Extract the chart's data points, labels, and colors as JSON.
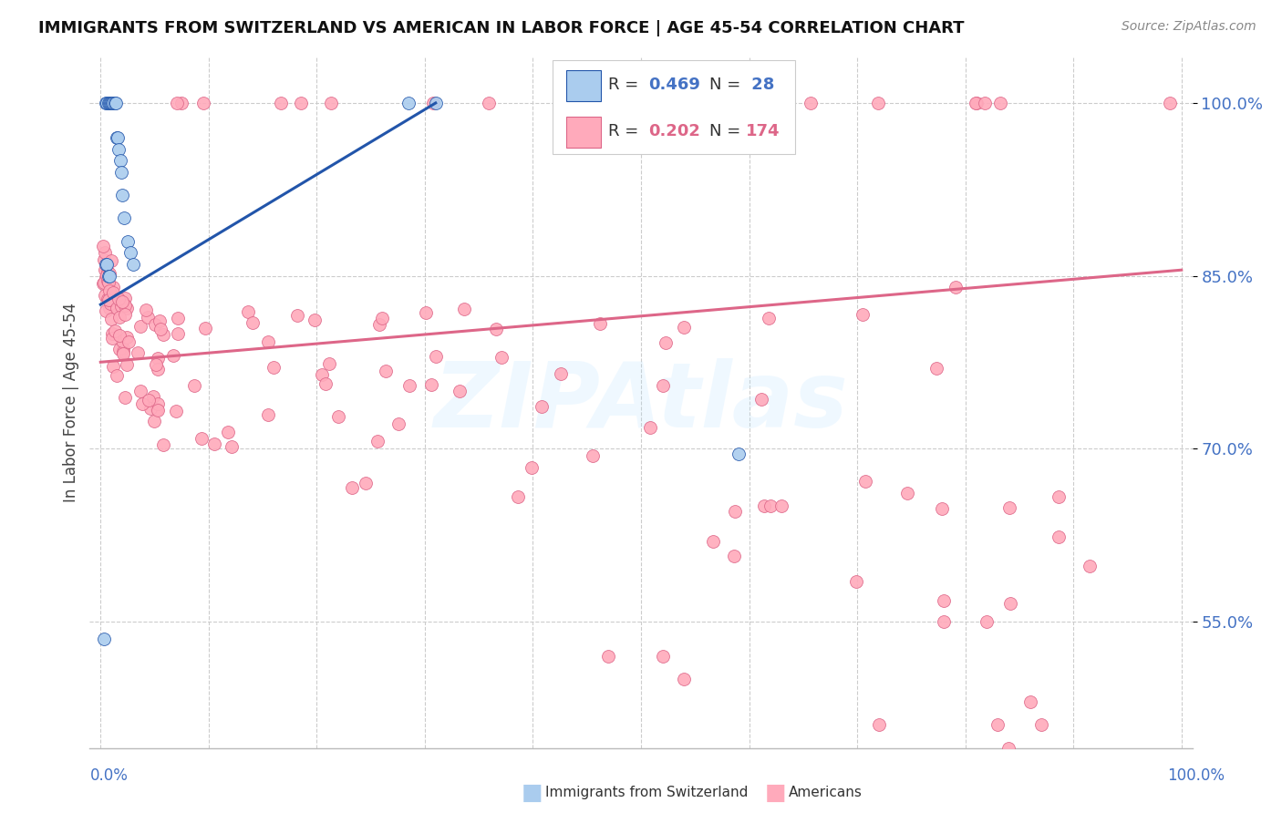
{
  "title": "IMMIGRANTS FROM SWITZERLAND VS AMERICAN IN LABOR FORCE | AGE 45-54 CORRELATION CHART",
  "source": "Source: ZipAtlas.com",
  "ylabel": "In Labor Force | Age 45-54",
  "xlim": [
    -0.01,
    1.01
  ],
  "ylim": [
    0.44,
    1.04
  ],
  "yticks": [
    0.55,
    0.7,
    0.85,
    1.0
  ],
  "ytick_labels": [
    "55.0%",
    "70.0%",
    "85.0%",
    "100.0%"
  ],
  "blue_color": "#aaccee",
  "blue_line_color": "#2255aa",
  "pink_color": "#ffaabb",
  "pink_line_color": "#dd6688",
  "watermark": "ZIPAtlas",
  "blue_R": "0.469",
  "blue_N": "28",
  "pink_R": "0.202",
  "pink_N": "174",
  "accent_color": "#4472c4",
  "blue_scatter_x": [
    0.005,
    0.006,
    0.007,
    0.008,
    0.009,
    0.01,
    0.011,
    0.012,
    0.013,
    0.014,
    0.015,
    0.016,
    0.017,
    0.018,
    0.019,
    0.02,
    0.022,
    0.025,
    0.028,
    0.03,
    0.005,
    0.006,
    0.007,
    0.008,
    0.285,
    0.31,
    0.003,
    0.59
  ],
  "blue_scatter_y": [
    1.0,
    1.0,
    1.0,
    1.0,
    1.0,
    1.0,
    1.0,
    1.0,
    1.0,
    1.0,
    0.97,
    0.97,
    0.96,
    0.95,
    0.94,
    0.92,
    0.9,
    0.88,
    0.87,
    0.86,
    0.86,
    0.86,
    0.85,
    0.85,
    1.0,
    1.0,
    0.535,
    0.695
  ],
  "pink_line_x0": 0.0,
  "pink_line_y0": 0.775,
  "pink_line_x1": 1.0,
  "pink_line_y1": 0.855
}
